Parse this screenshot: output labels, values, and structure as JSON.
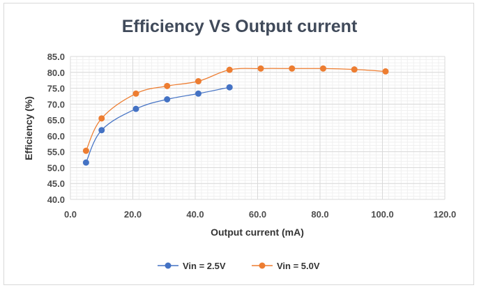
{
  "chart_data": {
    "type": "line",
    "title": "Efficiency Vs Output current",
    "xlabel": "Output current (mA)",
    "ylabel": "Efficiency (%)",
    "xlim": [
      0,
      120
    ],
    "ylim": [
      40,
      85
    ],
    "x_ticks": [
      "0.0",
      "20.0",
      "40.0",
      "60.0",
      "80.0",
      "100.0",
      "120.0"
    ],
    "y_ticks": [
      "85.0",
      "80.0",
      "75.0",
      "70.0",
      "65.0",
      "60.0",
      "55.0",
      "50.0",
      "45.0",
      "40.0"
    ],
    "grid": true,
    "legend_position": "bottom",
    "series": [
      {
        "name": "Vin = 2.5V",
        "color": "#4472c4",
        "x": [
          5,
          10,
          21,
          31,
          41,
          51
        ],
        "y": [
          51.6,
          61.8,
          68.5,
          71.5,
          73.3,
          75.3
        ]
      },
      {
        "name": "Vin = 5.0V",
        "color": "#ed7d31",
        "x": [
          5,
          10,
          21,
          31,
          41,
          51,
          61,
          71,
          81,
          91,
          101
        ],
        "y": [
          55.3,
          65.5,
          73.3,
          75.7,
          77.2,
          80.8,
          81.2,
          81.2,
          81.2,
          80.9,
          80.3
        ]
      }
    ]
  }
}
